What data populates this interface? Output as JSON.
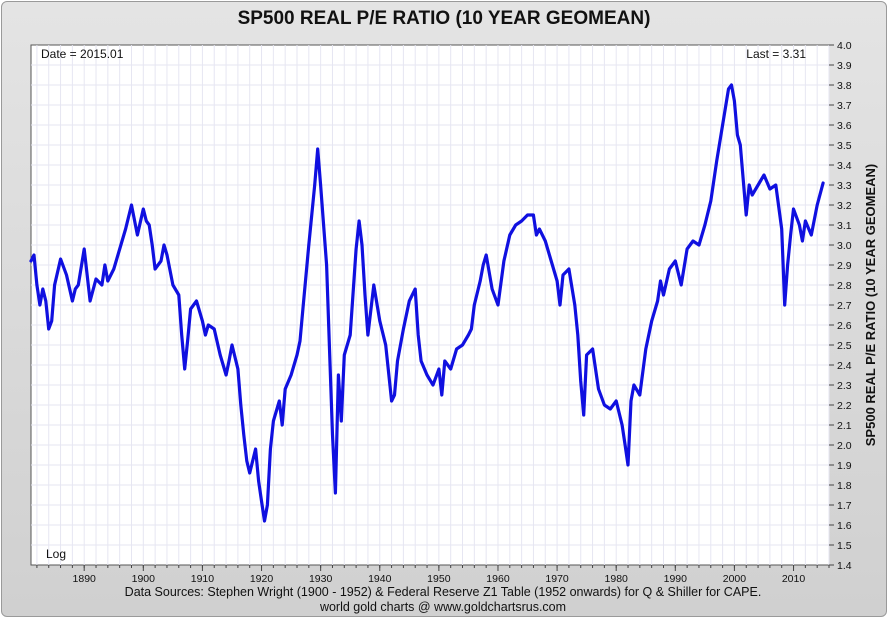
{
  "chart_data": {
    "type": "line",
    "title": "SP500 REAL P/E RATIO (10 YEAR GEOMEAN)",
    "ylabel": "SP500 REAL P/E RATIO (10 YEAR GEOMEAN)",
    "ylim": [
      1.4,
      4.0
    ],
    "yticks": [
      "1.4",
      "1.5",
      "1.6",
      "1.7",
      "1.8",
      "1.9",
      "2.0",
      "2.1",
      "2.2",
      "2.3",
      "2.4",
      "2.5",
      "2.6",
      "2.7",
      "2.8",
      "2.9",
      "3.0",
      "3.1",
      "3.2",
      "3.3",
      "3.4",
      "3.5",
      "3.6",
      "3.7",
      "3.8",
      "3.9",
      "4.0"
    ],
    "xlim": [
      1881,
      2016
    ],
    "xticks": [
      "1890",
      "1900",
      "1910",
      "1920",
      "1930",
      "1940",
      "1950",
      "1960",
      "1970",
      "1980",
      "1990",
      "2000",
      "2010"
    ],
    "grid": true,
    "annotations": {
      "date": "Date = 2015.01",
      "last": "Last = 3.31",
      "scale": "Log"
    },
    "series": [
      {
        "color": "#1010e0",
        "x": [
          1881,
          1881.5,
          1882,
          1882.5,
          1883,
          1883.5,
          1884,
          1884.5,
          1885,
          1886,
          1887,
          1888,
          1888.5,
          1889,
          1890,
          1891,
          1892,
          1893,
          1893.5,
          1894,
          1895,
          1896,
          1897,
          1898,
          1899,
          1900,
          1900.5,
          1901,
          1901.5,
          1902,
          1903,
          1903.5,
          1904,
          1905,
          1906,
          1906.5,
          1907,
          1907.5,
          1908,
          1909,
          1910,
          1910.5,
          1911,
          1912,
          1913,
          1914,
          1914.5,
          1915,
          1916,
          1916.5,
          1917,
          1917.5,
          1918,
          1919,
          1919.5,
          1920,
          1920.5,
          1921,
          1921.5,
          1922,
          1923,
          1923.5,
          1924,
          1925,
          1926,
          1926.5,
          1927,
          1928,
          1929,
          1929.5,
          1930,
          1931,
          1931.5,
          1932,
          1932.5,
          1933,
          1933.5,
          1934,
          1935,
          1936,
          1936.5,
          1937,
          1937.5,
          1938,
          1939,
          1940,
          1941,
          1942,
          1942.5,
          1943,
          1944,
          1945,
          1946,
          1946.5,
          1947,
          1948,
          1949,
          1950,
          1950.5,
          1951,
          1952,
          1953,
          1954,
          1955,
          1955.5,
          1956,
          1957,
          1957.5,
          1958,
          1959,
          1960,
          1961,
          1962,
          1963,
          1964,
          1965,
          1966,
          1966.5,
          1967,
          1968,
          1969,
          1970,
          1970.5,
          1971,
          1972,
          1973,
          1973.5,
          1974,
          1974.5,
          1975,
          1976,
          1977,
          1978,
          1979,
          1980,
          1981,
          1981.5,
          1982,
          1982.5,
          1983,
          1984,
          1985,
          1986,
          1987,
          1987.5,
          1988,
          1989,
          1990,
          1991,
          1992,
          1993,
          1994,
          1995,
          1996,
          1997,
          1998,
          1999,
          1999.5,
          2000,
          2000.5,
          2001,
          2002,
          2002.5,
          2003,
          2004,
          2005,
          2006,
          2007,
          2008,
          2008.5,
          2009,
          2009.5,
          2010,
          2011,
          2011.5,
          2012,
          2013,
          2014,
          2015
        ],
        "values": [
          2.92,
          2.95,
          2.8,
          2.7,
          2.78,
          2.72,
          2.58,
          2.62,
          2.8,
          2.93,
          2.85,
          2.72,
          2.78,
          2.8,
          2.98,
          2.72,
          2.83,
          2.8,
          2.9,
          2.82,
          2.88,
          2.98,
          3.08,
          3.2,
          3.05,
          3.18,
          3.12,
          3.1,
          3.0,
          2.88,
          2.92,
          3.0,
          2.95,
          2.8,
          2.75,
          2.55,
          2.38,
          2.52,
          2.68,
          2.72,
          2.62,
          2.55,
          2.6,
          2.58,
          2.45,
          2.35,
          2.42,
          2.5,
          2.38,
          2.2,
          2.05,
          1.92,
          1.86,
          1.98,
          1.82,
          1.72,
          1.62,
          1.7,
          1.98,
          2.12,
          2.22,
          2.1,
          2.28,
          2.35,
          2.45,
          2.52,
          2.68,
          3.0,
          3.3,
          3.48,
          3.3,
          2.9,
          2.48,
          2.05,
          1.76,
          2.35,
          2.12,
          2.45,
          2.55,
          2.98,
          3.12,
          3.0,
          2.75,
          2.55,
          2.8,
          2.62,
          2.5,
          2.22,
          2.25,
          2.42,
          2.58,
          2.72,
          2.78,
          2.55,
          2.42,
          2.35,
          2.3,
          2.38,
          2.25,
          2.42,
          2.38,
          2.48,
          2.5,
          2.55,
          2.58,
          2.7,
          2.82,
          2.9,
          2.95,
          2.78,
          2.7,
          2.92,
          3.05,
          3.1,
          3.12,
          3.15,
          3.15,
          3.05,
          3.08,
          3.02,
          2.92,
          2.82,
          2.7,
          2.85,
          2.88,
          2.7,
          2.55,
          2.32,
          2.15,
          2.45,
          2.48,
          2.28,
          2.2,
          2.18,
          2.22,
          2.1,
          2.0,
          1.9,
          2.22,
          2.3,
          2.25,
          2.48,
          2.62,
          2.72,
          2.82,
          2.75,
          2.88,
          2.92,
          2.8,
          2.98,
          3.02,
          3.0,
          3.1,
          3.22,
          3.42,
          3.6,
          3.78,
          3.8,
          3.72,
          3.55,
          3.5,
          3.15,
          3.3,
          3.25,
          3.3,
          3.35,
          3.28,
          3.3,
          3.08,
          2.7,
          2.9,
          3.05,
          3.18,
          3.1,
          3.02,
          3.12,
          3.05,
          3.2,
          3.31
        ]
      }
    ]
  },
  "footer": {
    "sources": "Data Sources: Stephen Wright (1900 - 1952) & Federal Reserve Z1 Table (1952 onwards) for Q & Shiller for CAPE.",
    "credit": "world gold charts @ www.goldchartsrus.com"
  }
}
